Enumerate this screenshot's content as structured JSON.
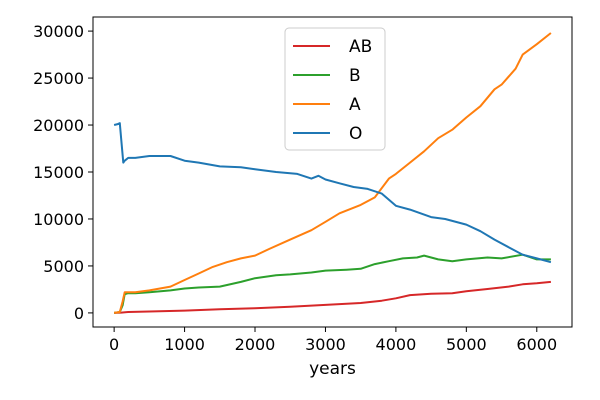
{
  "chart_data": {
    "type": "line",
    "title": "",
    "xlabel": "years",
    "ylabel": "",
    "xlim": [
      -300,
      6500
    ],
    "ylim": [
      -1500,
      31500
    ],
    "xticks": [
      0,
      1000,
      2000,
      3000,
      4000,
      5000,
      6000
    ],
    "yticks": [
      0,
      5000,
      10000,
      15000,
      20000,
      25000,
      30000
    ],
    "grid": false,
    "legend_position": "top-center",
    "series": [
      {
        "name": "AB",
        "color": "#d62728",
        "x": [
          0,
          100,
          200,
          500,
          1000,
          1500,
          2000,
          2500,
          3000,
          3500,
          3800,
          4000,
          4200,
          4500,
          4800,
          5000,
          5300,
          5600,
          5800,
          6000,
          6200
        ],
        "y": [
          0,
          30,
          100,
          150,
          250,
          400,
          500,
          650,
          850,
          1050,
          1300,
          1550,
          1900,
          2050,
          2100,
          2300,
          2550,
          2800,
          3050,
          3150,
          3300
        ]
      },
      {
        "name": "B",
        "color": "#2ca02c",
        "x": [
          0,
          80,
          120,
          150,
          200,
          300,
          500,
          800,
          1000,
          1200,
          1500,
          1800,
          2000,
          2300,
          2500,
          2800,
          3000,
          3300,
          3500,
          3700,
          3900,
          4100,
          4300,
          4400,
          4600,
          4800,
          5000,
          5300,
          5500,
          5800,
          6000,
          6200
        ],
        "y": [
          0,
          100,
          800,
          2000,
          2100,
          2100,
          2200,
          2400,
          2600,
          2700,
          2800,
          3300,
          3700,
          4000,
          4100,
          4300,
          4500,
          4600,
          4700,
          5200,
          5500,
          5800,
          5900,
          6100,
          5700,
          5500,
          5700,
          5900,
          5800,
          6200,
          5700,
          5700
        ]
      },
      {
        "name": "A",
        "color": "#ff7f0e",
        "x": [
          0,
          80,
          120,
          150,
          200,
          300,
          500,
          800,
          1000,
          1200,
          1400,
          1600,
          1800,
          2000,
          2200,
          2500,
          2800,
          3000,
          3200,
          3500,
          3700,
          3900,
          4000,
          4200,
          4400,
          4600,
          4800,
          5000,
          5200,
          5400,
          5500,
          5700,
          5800,
          6000,
          6200
        ],
        "y": [
          0,
          100,
          1200,
          2200,
          2200,
          2200,
          2400,
          2800,
          3500,
          4200,
          4900,
          5400,
          5800,
          6100,
          6800,
          7800,
          8800,
          9700,
          10600,
          11500,
          12300,
          14300,
          14800,
          16000,
          17200,
          18600,
          19500,
          20800,
          22000,
          23800,
          24300,
          26000,
          27500,
          28600,
          29800
        ]
      },
      {
        "name": "O",
        "color": "#1f77b4",
        "x": [
          0,
          50,
          80,
          100,
          130,
          150,
          200,
          300,
          500,
          800,
          1000,
          1200,
          1500,
          1800,
          2000,
          2300,
          2600,
          2800,
          2900,
          3000,
          3200,
          3400,
          3600,
          3800,
          4000,
          4200,
          4500,
          4700,
          5000,
          5200,
          5400,
          5600,
          5800,
          6000,
          6200
        ],
        "y": [
          20000,
          20100,
          20200,
          18500,
          16000,
          16200,
          16500,
          16500,
          16700,
          16700,
          16200,
          16000,
          15600,
          15500,
          15300,
          15000,
          14800,
          14300,
          14600,
          14200,
          13800,
          13400,
          13200,
          12700,
          11400,
          11000,
          10200,
          10000,
          9400,
          8700,
          7800,
          7000,
          6200,
          5800,
          5400
        ]
      }
    ]
  }
}
